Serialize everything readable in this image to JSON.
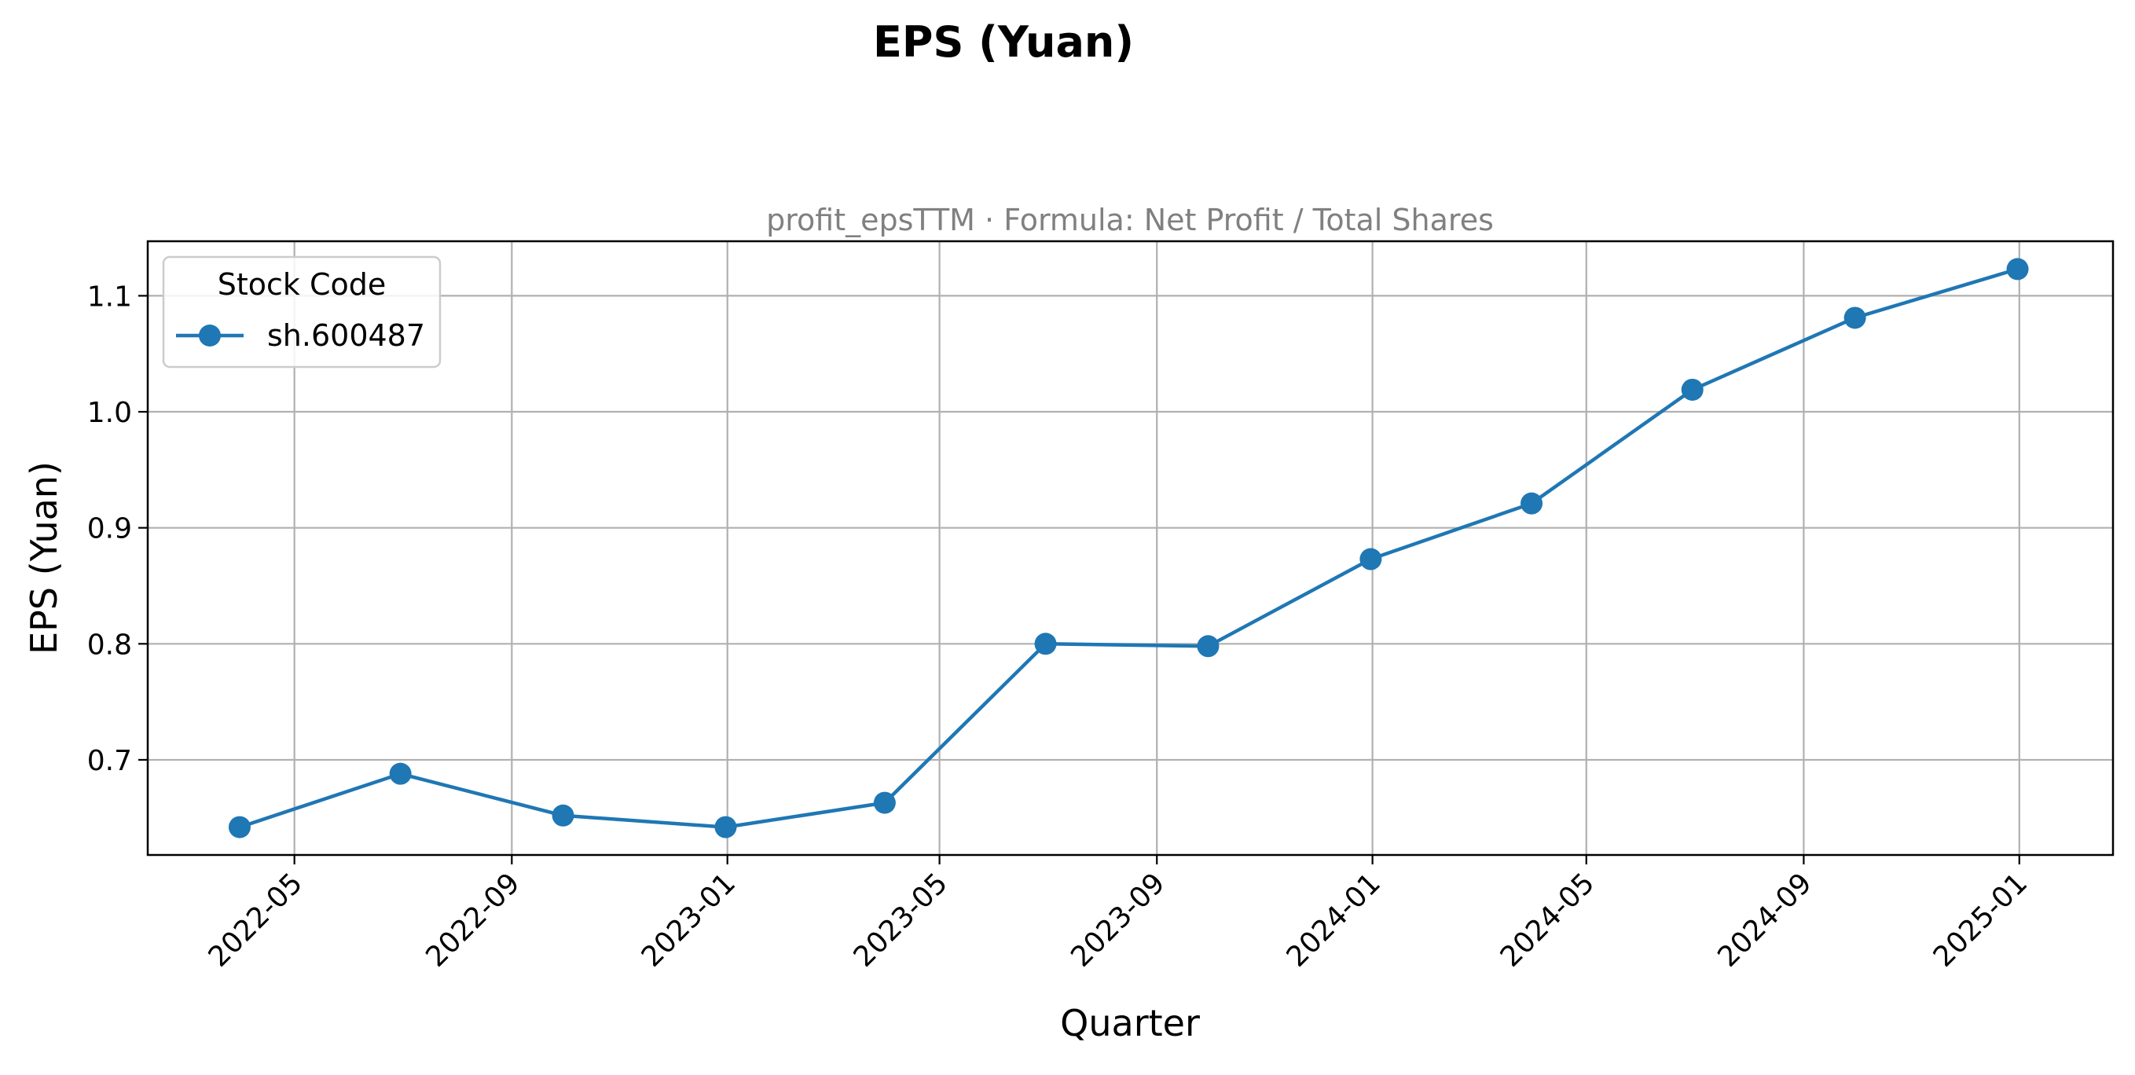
{
  "figure": {
    "suptitle": "EPS (Yuan)"
  },
  "chart_data": {
    "type": "line",
    "title": "profit_epsTTM · Formula: Net Profit / Total Shares",
    "xlabel": "Quarter",
    "ylabel": "EPS (Yuan)",
    "x_type": "date",
    "xlim": [
      "2022-02-07",
      "2025-02-23"
    ],
    "ylim": [
      0.618,
      1.147
    ],
    "grid": true,
    "legend": {
      "title": "Stock Code",
      "placement": "upper-left"
    },
    "x_ticks": [
      "2022-05-01",
      "2022-09-01",
      "2023-01-01",
      "2023-05-01",
      "2023-09-01",
      "2024-01-01",
      "2024-05-01",
      "2024-09-01",
      "2025-01-01"
    ],
    "x_tick_labels": [
      "2022-05",
      "2022-09",
      "2023-01",
      "2023-05",
      "2023-09",
      "2024-01",
      "2024-05",
      "2024-09",
      "2025-01"
    ],
    "y_ticks": [
      0.7,
      0.8,
      0.9,
      1.0,
      1.1
    ],
    "y_tick_labels": [
      "0.7",
      "0.8",
      "0.9",
      "1.0",
      "1.1"
    ],
    "series": [
      {
        "name": "sh.600487",
        "color": "#1f77b4",
        "marker": "circle",
        "x": [
          "2022-03-31",
          "2022-06-30",
          "2022-09-30",
          "2022-12-31",
          "2023-03-31",
          "2023-06-30",
          "2023-09-30",
          "2023-12-31",
          "2024-03-31",
          "2024-06-30",
          "2024-09-30",
          "2024-12-31"
        ],
        "y": [
          0.642,
          0.688,
          0.652,
          0.642,
          0.663,
          0.8,
          0.798,
          0.873,
          0.921,
          1.019,
          1.081,
          1.123
        ]
      }
    ]
  }
}
